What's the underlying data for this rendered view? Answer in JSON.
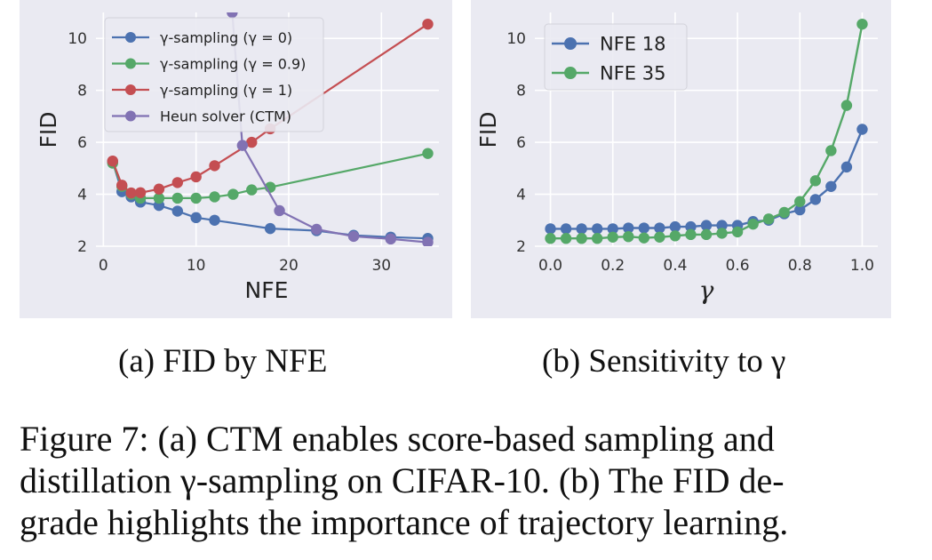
{
  "chart_data": [
    {
      "type": "line",
      "panel": "a",
      "xlabel": "NFE",
      "ylabel": "FID",
      "xlim": [
        -0.8,
        36.2
      ],
      "ylim": [
        2,
        11
      ],
      "xticks": [
        "0",
        "10",
        "20",
        "30"
      ],
      "yticks": [
        "2",
        "4",
        "6",
        "8",
        "10"
      ],
      "grid": true,
      "legend": "top-left",
      "series": [
        {
          "name": "γ-sampling (γ = 0)",
          "color": "#4c72b0",
          "x": [
            1,
            2,
            3,
            4,
            6,
            8,
            10,
            12,
            18,
            23,
            27,
            31,
            35
          ],
          "y": [
            5.25,
            4.1,
            3.9,
            3.7,
            3.57,
            3.35,
            3.1,
            3.0,
            2.68,
            2.6,
            2.42,
            2.35,
            2.3
          ]
        },
        {
          "name": "γ-sampling (γ = 0.9)",
          "color": "#55a868",
          "x": [
            1,
            2,
            3,
            4,
            6,
            8,
            10,
            12,
            14,
            16,
            18,
            35
          ],
          "y": [
            5.2,
            4.3,
            4.0,
            3.85,
            3.85,
            3.85,
            3.85,
            3.9,
            4.0,
            4.17,
            4.27,
            5.57
          ]
        },
        {
          "name": "γ-sampling (γ = 1)",
          "color": "#c44e52",
          "x": [
            1,
            2,
            3,
            4,
            6,
            8,
            10,
            12,
            16,
            18,
            35
          ],
          "y": [
            5.28,
            4.35,
            4.05,
            4.06,
            4.2,
            4.45,
            4.67,
            5.1,
            6.0,
            6.52,
            10.55
          ]
        },
        {
          "name": "Heun solver (CTM)",
          "color": "#8172b3",
          "x": [
            13.9,
            15,
            19,
            23,
            27,
            31,
            35
          ],
          "y": [
            11.0,
            5.88,
            3.37,
            2.65,
            2.38,
            2.28,
            2.15
          ]
        }
      ]
    },
    {
      "type": "line",
      "panel": "b",
      "xlabel": "γ",
      "ylabel": "FID",
      "xlim": [
        -0.05,
        1.05
      ],
      "ylim": [
        2,
        11
      ],
      "xticks": [
        "0.0",
        "0.2",
        "0.4",
        "0.6",
        "0.8",
        "1.0"
      ],
      "yticks": [
        "2",
        "4",
        "6",
        "8",
        "10"
      ],
      "grid": true,
      "legend": "top-left",
      "series": [
        {
          "name": "NFE 18",
          "color": "#4c72b0",
          "x": [
            0.0,
            0.05,
            0.1,
            0.15,
            0.2,
            0.25,
            0.3,
            0.35,
            0.4,
            0.45,
            0.5,
            0.55,
            0.6,
            0.65,
            0.7,
            0.75,
            0.8,
            0.85,
            0.9,
            0.95,
            1.0
          ],
          "y": [
            2.67,
            2.67,
            2.67,
            2.67,
            2.67,
            2.7,
            2.7,
            2.7,
            2.75,
            2.75,
            2.8,
            2.8,
            2.8,
            2.95,
            3.0,
            3.25,
            3.4,
            3.8,
            4.3,
            5.05,
            6.5
          ]
        },
        {
          "name": "NFE 35",
          "color": "#55a868",
          "x": [
            0.0,
            0.05,
            0.1,
            0.15,
            0.2,
            0.25,
            0.3,
            0.35,
            0.4,
            0.45,
            0.5,
            0.55,
            0.6,
            0.65,
            0.7,
            0.75,
            0.8,
            0.85,
            0.9,
            0.95,
            1.0
          ],
          "y": [
            2.3,
            2.3,
            2.3,
            2.3,
            2.35,
            2.37,
            2.32,
            2.35,
            2.4,
            2.45,
            2.45,
            2.5,
            2.55,
            2.85,
            3.05,
            3.3,
            3.72,
            4.52,
            5.68,
            7.42,
            10.55
          ]
        }
      ]
    }
  ],
  "subcaptions": {
    "a": "(a) FID by NFE",
    "b": "(b) Sensitivity to γ"
  },
  "caption_lines": [
    "Figure 7: (a) CTM enables score-based sampling and",
    "distillation γ-sampling on CIFAR-10. (b) The FID de-",
    "grade highlights the importance of trajectory learning."
  ]
}
